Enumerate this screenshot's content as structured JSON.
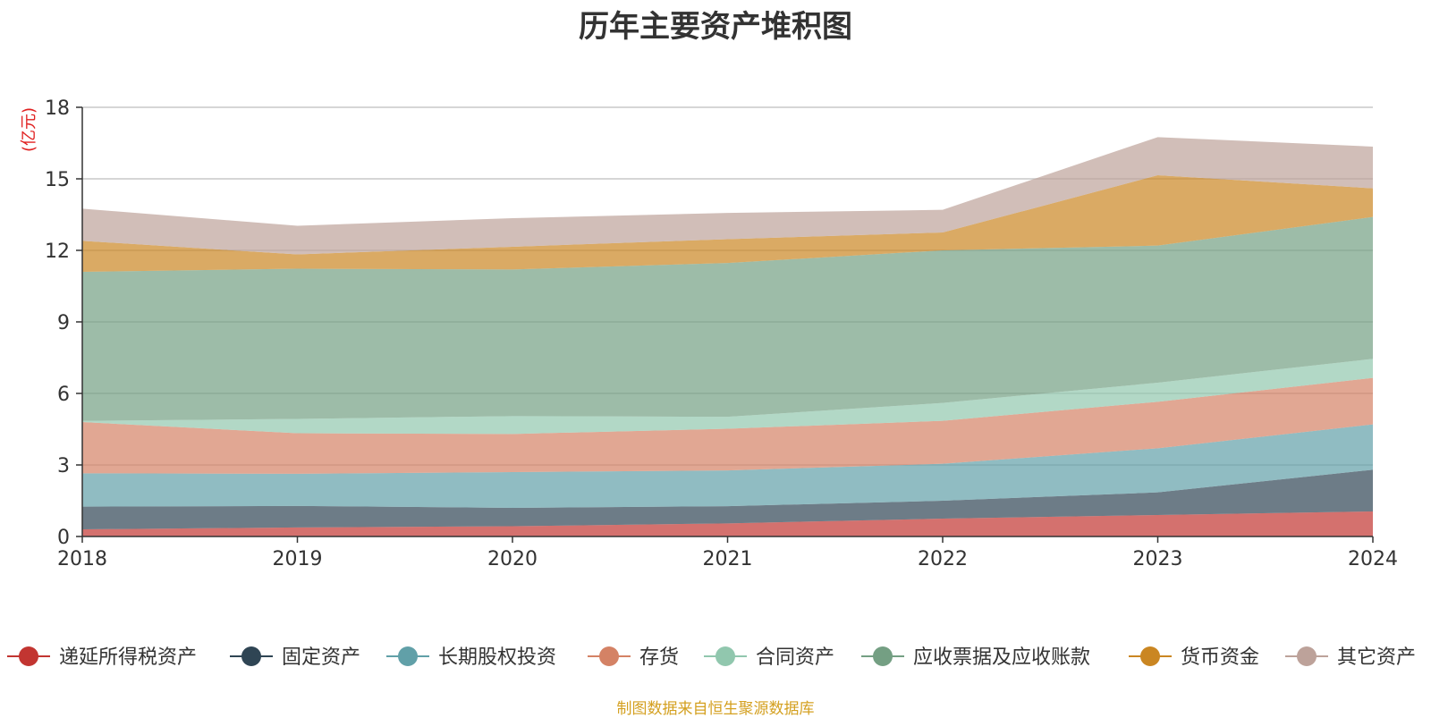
{
  "chart_data": {
    "type": "area",
    "stacked": true,
    "title": "历年主要资产堆积图",
    "ylabel": "(亿元)",
    "x": [
      "2018",
      "2019",
      "2020",
      "2021",
      "2022",
      "2023",
      "2024"
    ],
    "ylim": [
      0,
      18
    ],
    "yticks": [
      0,
      3,
      6,
      9,
      12,
      15,
      18
    ],
    "grid": true,
    "legend_position": "bottom",
    "series": [
      {
        "name": "递延所得税资产",
        "color": "#c23531",
        "values": [
          0.3,
          0.38,
          0.43,
          0.55,
          0.75,
          0.9,
          1.05
        ]
      },
      {
        "name": "固定资产",
        "color": "#2f4554",
        "values": [
          0.95,
          0.9,
          0.77,
          0.72,
          0.75,
          0.95,
          1.75
        ]
      },
      {
        "name": "长期股权投资",
        "color": "#61a0a8",
        "values": [
          1.4,
          1.35,
          1.5,
          1.5,
          1.55,
          1.85,
          1.9
        ]
      },
      {
        "name": "存货",
        "color": "#d48265",
        "values": [
          2.15,
          1.7,
          1.6,
          1.75,
          1.8,
          1.95,
          1.95
        ]
      },
      {
        "name": "合同资产",
        "color": "#91c7ae",
        "values": [
          0.05,
          0.6,
          0.75,
          0.5,
          0.75,
          0.8,
          0.8
        ]
      },
      {
        "name": "应收票据及应收账款",
        "color": "#749f83",
        "values": [
          6.25,
          6.3,
          6.15,
          6.45,
          6.4,
          5.75,
          5.95
        ]
      },
      {
        "name": "货币资金",
        "color": "#ca8622",
        "values": [
          1.3,
          0.6,
          0.95,
          1.0,
          0.75,
          2.95,
          1.2
        ]
      },
      {
        "name": "其它资产",
        "color": "#bda29a",
        "values": [
          1.35,
          1.2,
          1.2,
          1.1,
          0.95,
          1.6,
          1.75
        ]
      }
    ]
  },
  "footer": {
    "source": "制图数据来自恒生聚源数据库"
  }
}
